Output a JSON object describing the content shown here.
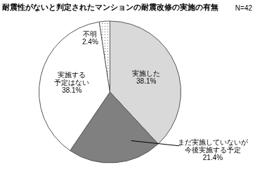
{
  "chart_data": {
    "type": "pie",
    "title": "耐震性がないと判定されたマンションの耐震改修の実施の有無",
    "annotation": "N=42",
    "categories": [
      "実施した",
      "まだ実施していないが\n今後実施する予定",
      "実施する\n予定はない",
      "不明"
    ],
    "values": [
      38.1,
      21.4,
      38.1,
      2.4
    ],
    "value_labels": [
      "38.1%",
      "21.4%",
      "38.1%",
      "2.4%"
    ],
    "colors": [
      "#d9d9d9",
      "#808080",
      "#ffffff",
      "#ffffff"
    ],
    "data_labels": true
  }
}
